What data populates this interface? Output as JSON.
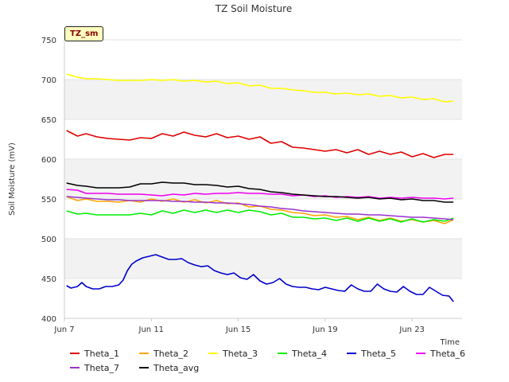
{
  "chart_data": {
    "type": "line",
    "title": "TZ Soil Moisture",
    "xlabel": "Time",
    "ylabel": "Soil Moisture (mV)",
    "site_label": "TZ_sm",
    "ylim": [
      400,
      750
    ],
    "yticks": [
      400,
      450,
      500,
      550,
      600,
      650,
      700,
      750
    ],
    "xlim": [
      0,
      18.3
    ],
    "xticks": [
      {
        "x": 0,
        "label": "Jun 7"
      },
      {
        "x": 4,
        "label": "Jun 11"
      },
      {
        "x": 8,
        "label": "Jun 15"
      },
      {
        "x": 12,
        "label": "Jun 19"
      },
      {
        "x": 16,
        "label": "Jun 23"
      }
    ],
    "x_unit": "days since Jun 7",
    "series": [
      {
        "name": "Theta_1",
        "color": "#dd0000",
        "x": [
          0.1,
          0.6,
          1.0,
          1.5,
          2.0,
          2.5,
          3.0,
          3.5,
          4.0,
          4.5,
          5.0,
          5.5,
          6.0,
          6.5,
          7.0,
          7.5,
          8.0,
          8.5,
          9.0,
          9.5,
          10.0,
          10.5,
          11.0,
          11.5,
          12.0,
          12.5,
          13.0,
          13.5,
          14.0,
          14.5,
          15.0,
          15.5,
          16.0,
          16.5,
          17.0,
          17.5,
          17.9
        ],
        "y": [
          636,
          629,
          632,
          628,
          626,
          625,
          624,
          627,
          626,
          632,
          629,
          634,
          630,
          628,
          632,
          627,
          629,
          625,
          628,
          620,
          622,
          615,
          614,
          612,
          610,
          612,
          608,
          612,
          606,
          610,
          606,
          609,
          603,
          607,
          602,
          606,
          606
        ]
      },
      {
        "name": "Theta_2",
        "color": "#ffa500",
        "x": [
          0.1,
          0.6,
          1.0,
          1.5,
          2.0,
          2.5,
          3.0,
          3.5,
          4.0,
          4.5,
          5.0,
          5.5,
          6.0,
          6.5,
          7.0,
          7.5,
          8.0,
          8.5,
          9.0,
          9.5,
          10.0,
          10.5,
          11.0,
          11.5,
          12.0,
          12.5,
          13.0,
          13.5,
          14.0,
          14.5,
          15.0,
          15.5,
          16.0,
          16.5,
          17.0,
          17.5,
          17.9
        ],
        "y": [
          553,
          548,
          550,
          547,
          547,
          546,
          548,
          546,
          550,
          547,
          550,
          546,
          549,
          545,
          548,
          544,
          545,
          540,
          541,
          537,
          536,
          533,
          532,
          529,
          530,
          527,
          528,
          524,
          527,
          523,
          526,
          522,
          524,
          521,
          523,
          519,
          524
        ]
      },
      {
        "name": "Theta_3",
        "color": "#ffff00",
        "x": [
          0.1,
          0.6,
          1.0,
          1.5,
          2.0,
          2.5,
          3.0,
          3.5,
          4.0,
          4.5,
          5.0,
          5.5,
          6.0,
          6.5,
          7.0,
          7.5,
          8.0,
          8.5,
          9.0,
          9.5,
          10.0,
          10.5,
          11.0,
          11.5,
          12.0,
          12.5,
          13.0,
          13.5,
          14.0,
          14.5,
          15.0,
          15.5,
          16.0,
          16.5,
          17.0,
          17.5,
          17.9
        ],
        "y": [
          707,
          703,
          701,
          701,
          700,
          699,
          699,
          699,
          700,
          699,
          700,
          698,
          699,
          697,
          698,
          695,
          696,
          692,
          693,
          689,
          689,
          687,
          686,
          684,
          684,
          682,
          683,
          681,
          682,
          679,
          680,
          677,
          678,
          675,
          676,
          672,
          673
        ]
      },
      {
        "name": "Theta_4",
        "color": "#00ee00",
        "x": [
          0.1,
          0.6,
          1.0,
          1.5,
          2.0,
          2.5,
          3.0,
          3.5,
          4.0,
          4.5,
          5.0,
          5.5,
          6.0,
          6.5,
          7.0,
          7.5,
          8.0,
          8.5,
          9.0,
          9.5,
          10.0,
          10.5,
          11.0,
          11.5,
          12.0,
          12.5,
          13.0,
          13.5,
          14.0,
          14.5,
          15.0,
          15.5,
          16.0,
          16.5,
          17.0,
          17.5,
          17.9
        ],
        "y": [
          535,
          531,
          532,
          530,
          530,
          530,
          530,
          532,
          530,
          535,
          532,
          536,
          533,
          536,
          533,
          536,
          533,
          536,
          534,
          530,
          532,
          527,
          527,
          525,
          526,
          523,
          526,
          522,
          526,
          522,
          525,
          521,
          525,
          521,
          524,
          522,
          526
        ]
      },
      {
        "name": "Theta_5",
        "color": "#0000cc",
        "x": [
          0.1,
          0.3,
          0.6,
          0.8,
          1.0,
          1.3,
          1.6,
          1.9,
          2.2,
          2.5,
          2.7,
          2.9,
          3.1,
          3.3,
          3.6,
          3.9,
          4.2,
          4.5,
          4.8,
          5.1,
          5.4,
          5.7,
          6.0,
          6.3,
          6.6,
          6.9,
          7.2,
          7.5,
          7.8,
          8.1,
          8.4,
          8.7,
          9.0,
          9.3,
          9.6,
          9.9,
          10.2,
          10.5,
          10.8,
          11.1,
          11.4,
          11.7,
          12.0,
          12.3,
          12.6,
          12.9,
          13.2,
          13.5,
          13.8,
          14.1,
          14.4,
          14.7,
          15.0,
          15.3,
          15.6,
          15.9,
          16.2,
          16.5,
          16.8,
          17.1,
          17.4,
          17.7,
          17.9
        ],
        "y": [
          441,
          438,
          440,
          445,
          440,
          437,
          437,
          440,
          440,
          442,
          448,
          460,
          468,
          472,
          476,
          478,
          480,
          477,
          474,
          474,
          475,
          470,
          467,
          465,
          466,
          460,
          457,
          455,
          457,
          451,
          449,
          455,
          447,
          443,
          445,
          450,
          443,
          440,
          439,
          439,
          437,
          436,
          439,
          437,
          435,
          434,
          442,
          437,
          434,
          434,
          443,
          437,
          434,
          433,
          440,
          434,
          430,
          430,
          439,
          434,
          429,
          428,
          421
        ]
      },
      {
        "name": "Theta_6",
        "color": "#ee00ee",
        "x": [
          0.1,
          0.6,
          1.0,
          1.5,
          2.0,
          2.5,
          3.0,
          3.5,
          4.0,
          4.5,
          5.0,
          5.5,
          6.0,
          6.5,
          7.0,
          7.5,
          8.0,
          8.5,
          9.0,
          9.5,
          10.0,
          10.5,
          11.0,
          11.5,
          12.0,
          12.5,
          13.0,
          13.5,
          14.0,
          14.5,
          15.0,
          15.5,
          16.0,
          16.5,
          17.0,
          17.5,
          17.9
        ],
        "y": [
          562,
          561,
          557,
          557,
          557,
          556,
          556,
          556,
          555,
          554,
          556,
          555,
          557,
          556,
          557,
          557,
          558,
          557,
          557,
          556,
          556,
          554,
          555,
          553,
          554,
          552,
          553,
          552,
          553,
          551,
          552,
          551,
          552,
          551,
          551,
          550,
          551
        ]
      },
      {
        "name": "Theta_7",
        "color": "#9932cc",
        "x": [
          0.1,
          0.6,
          1.0,
          1.5,
          2.0,
          2.5,
          3.0,
          3.5,
          4.0,
          4.5,
          5.0,
          5.5,
          6.0,
          6.5,
          7.0,
          7.5,
          8.0,
          8.5,
          9.0,
          9.5,
          10.0,
          10.5,
          11.0,
          11.5,
          12.0,
          12.5,
          13.0,
          13.5,
          14.0,
          14.5,
          15.0,
          15.5,
          16.0,
          16.5,
          17.0,
          17.5,
          17.9
        ],
        "y": [
          553,
          552,
          551,
          550,
          549,
          549,
          548,
          548,
          548,
          548,
          547,
          547,
          546,
          546,
          545,
          545,
          544,
          543,
          541,
          540,
          538,
          537,
          535,
          534,
          533,
          532,
          531,
          531,
          530,
          530,
          529,
          528,
          527,
          527,
          526,
          525,
          524
        ]
      },
      {
        "name": "Theta_avg",
        "color": "#000000",
        "x": [
          0.1,
          0.6,
          1.0,
          1.5,
          2.0,
          2.5,
          3.0,
          3.5,
          4.0,
          4.5,
          5.0,
          5.5,
          6.0,
          6.5,
          7.0,
          7.5,
          8.0,
          8.5,
          9.0,
          9.5,
          10.0,
          10.5,
          11.0,
          11.5,
          12.0,
          12.5,
          13.0,
          13.5,
          14.0,
          14.5,
          15.0,
          15.5,
          16.0,
          16.5,
          17.0,
          17.5,
          17.9
        ],
        "y": [
          570,
          567,
          566,
          564,
          564,
          564,
          565,
          569,
          569,
          571,
          570,
          570,
          568,
          568,
          567,
          565,
          566,
          563,
          562,
          559,
          558,
          556,
          555,
          554,
          553,
          553,
          552,
          551,
          552,
          550,
          551,
          549,
          550,
          548,
          548,
          546,
          546
        ]
      }
    ]
  }
}
